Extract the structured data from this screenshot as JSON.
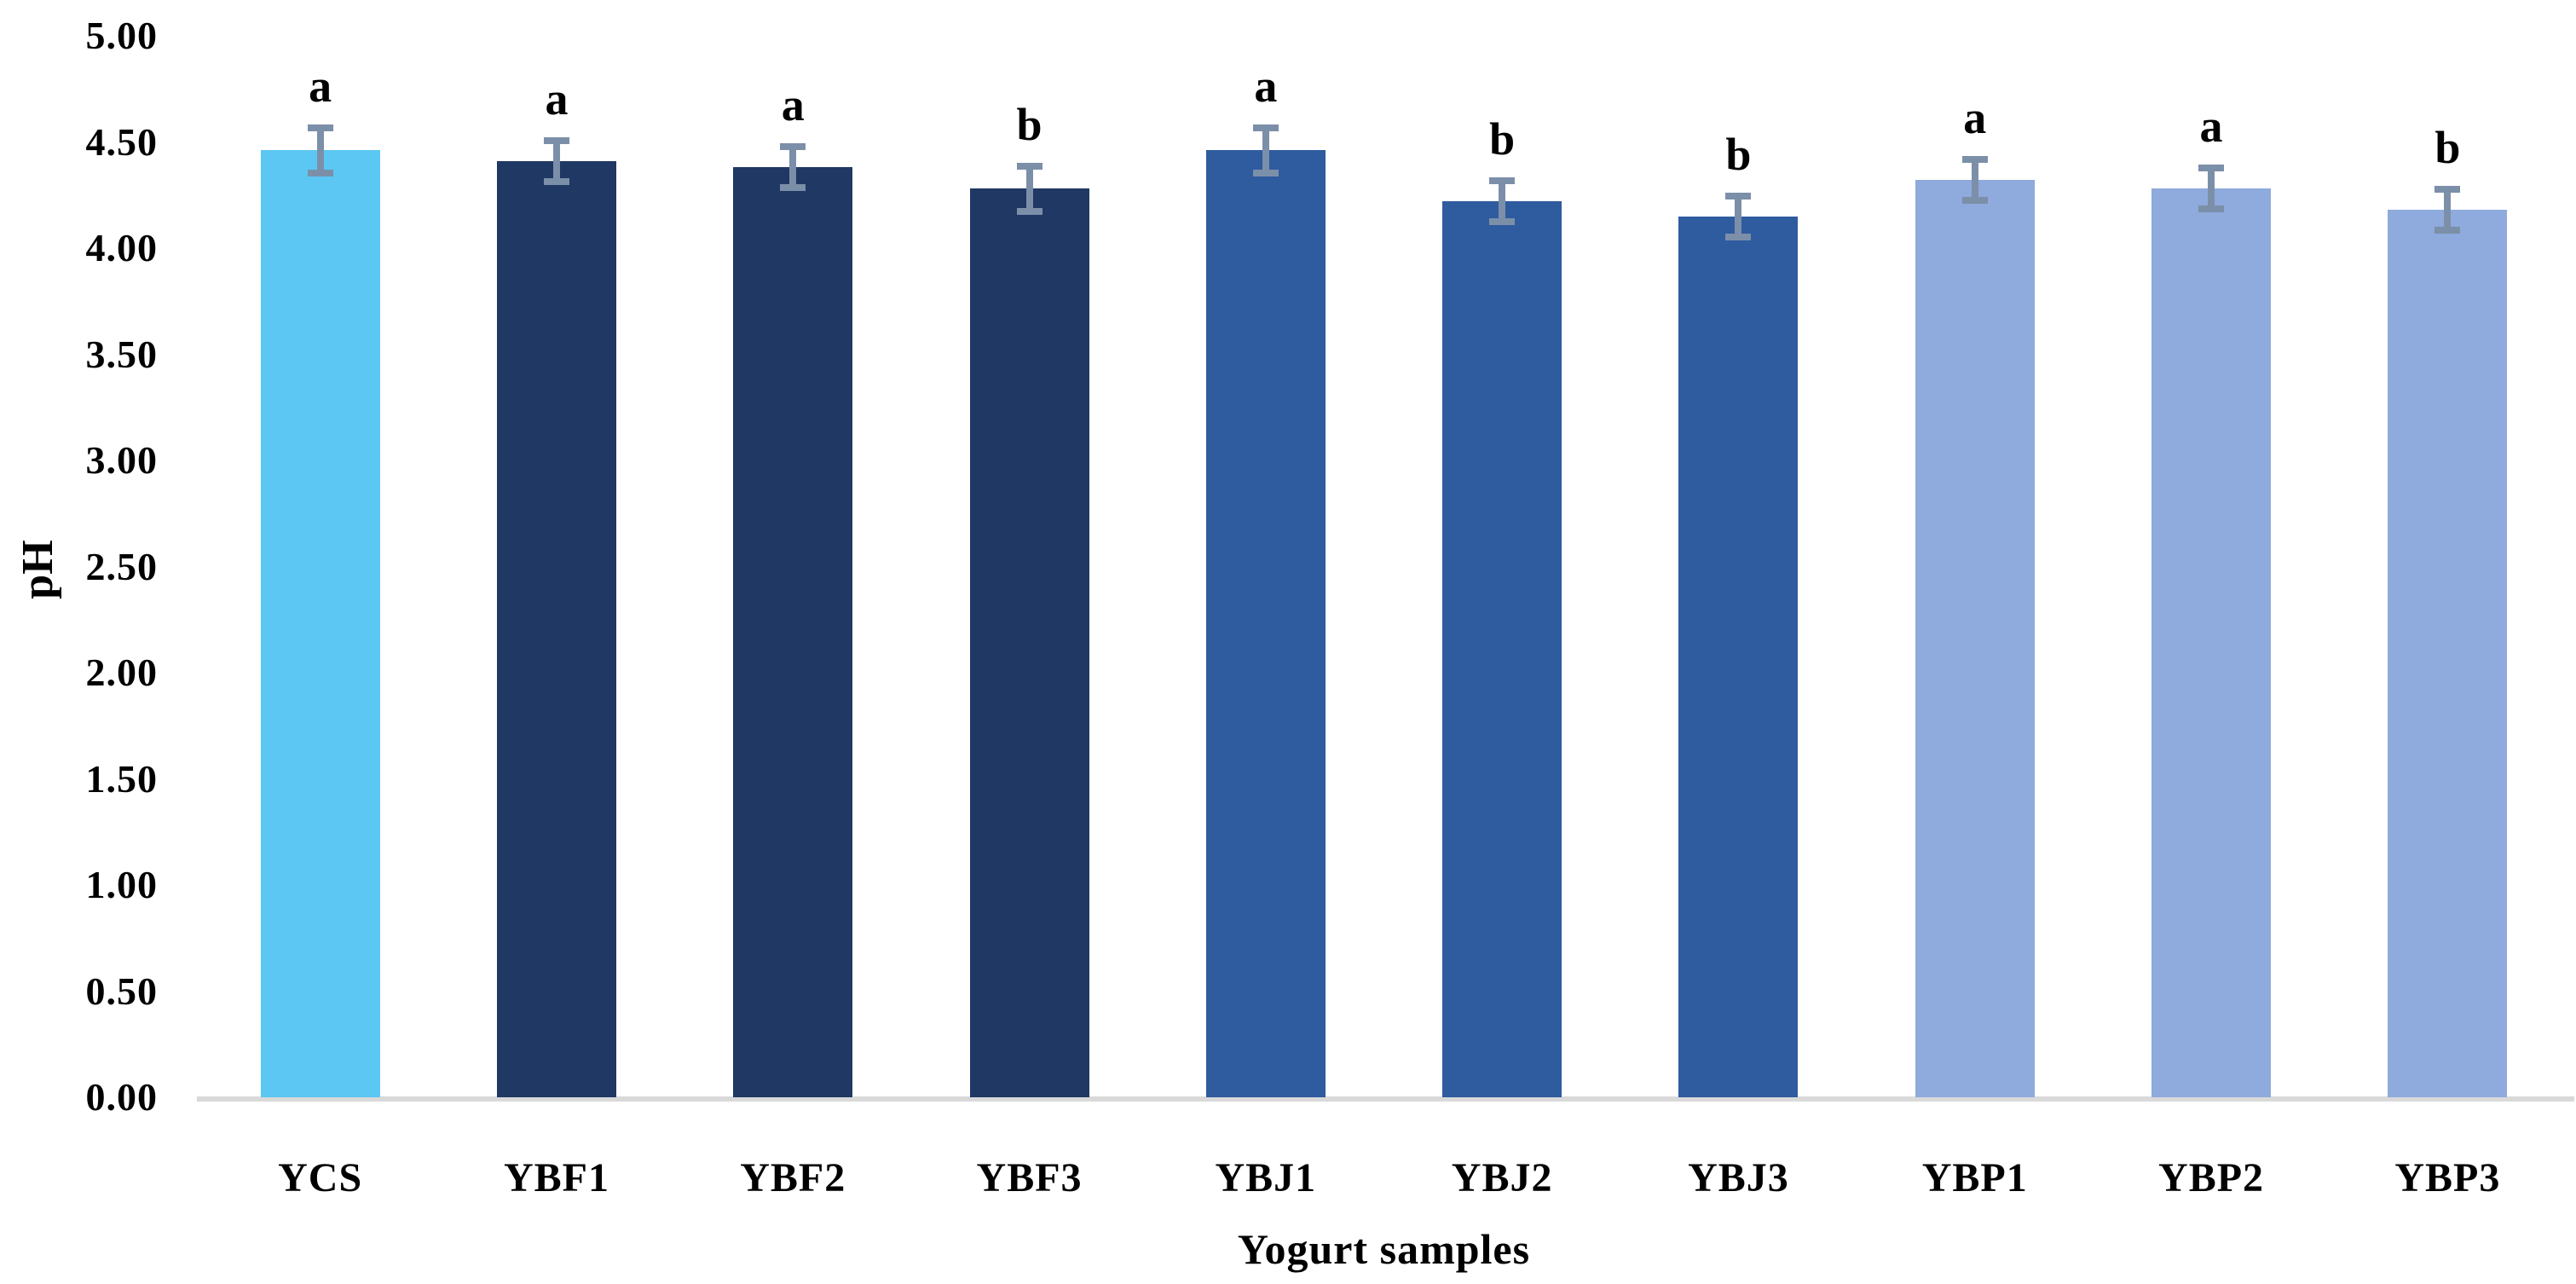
{
  "chart_data": {
    "type": "bar",
    "title": "",
    "xlabel": "Yogurt samples",
    "ylabel": "pH",
    "categories": [
      "YCS",
      "YBF1",
      "YBF2",
      "YBF3",
      "YBJ1",
      "YBJ2",
      "YBJ3",
      "YBP1",
      "YBP2",
      "YBP3"
    ],
    "values": [
      4.46,
      4.41,
      4.38,
      4.28,
      4.46,
      4.22,
      4.15,
      4.32,
      4.28,
      4.18
    ],
    "error_bars": [
      0.09,
      0.08,
      0.08,
      0.09,
      0.09,
      0.08,
      0.08,
      0.08,
      0.08,
      0.08
    ],
    "sig_letters": [
      "a",
      "a",
      "a",
      "b",
      "a",
      "b",
      "b",
      "a",
      "a",
      "b"
    ],
    "bar_colors": [
      "#5CC7F2",
      "#1F3864",
      "#1F3864",
      "#1F3864",
      "#2F5B9F",
      "#2F5B9F",
      "#2F5B9F",
      "#8FAADC",
      "#8FAADC",
      "#8FAADC"
    ],
    "ylim": [
      0,
      5
    ],
    "ytick_step": 0.5,
    "yticks": [
      "0.00",
      "0.50",
      "1.00",
      "1.50",
      "2.00",
      "2.50",
      "3.00",
      "3.50",
      "4.00",
      "4.50",
      "5.00"
    ],
    "grid": false,
    "legend": "none",
    "error_bar_color": "#7C8FA9",
    "axis_line_color": "#D9D9D9"
  }
}
